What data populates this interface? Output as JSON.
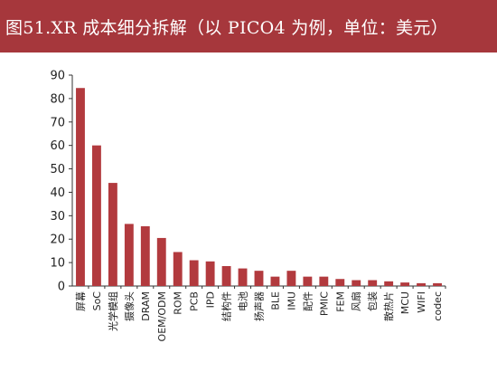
{
  "header": {
    "title": "图51.XR 成本细分拆解（以 PICO4 为例，单位：美元）",
    "background_color": "#a6373c",
    "text_color": "#ffffff"
  },
  "chart_data": {
    "type": "bar",
    "title": "",
    "xlabel": "",
    "ylabel": "",
    "ylim": [
      0,
      90
    ],
    "yticks": [
      0,
      10,
      20,
      30,
      40,
      50,
      60,
      70,
      80,
      90
    ],
    "grid": false,
    "legend": "none",
    "bar_color": "#b23a3e",
    "categories": [
      "屏幕",
      "SoC",
      "光学模组",
      "摄像头",
      "DRAM",
      "OEM/ODM",
      "ROM",
      "PCB",
      "IPD",
      "结构件",
      "电池",
      "扬声器",
      "BLE",
      "IMU",
      "配件",
      "PMIC",
      "FEM",
      "风扇",
      "包装",
      "散热片",
      "MCU",
      "WIFI",
      "codec"
    ],
    "values": [
      84.5,
      60,
      44,
      26.5,
      25.5,
      20.5,
      14.5,
      11,
      10.5,
      8.5,
      7.5,
      6.5,
      4,
      6.5,
      4,
      4,
      3,
      2.5,
      2.5,
      2,
      1.5,
      1.2,
      1.2
    ]
  }
}
